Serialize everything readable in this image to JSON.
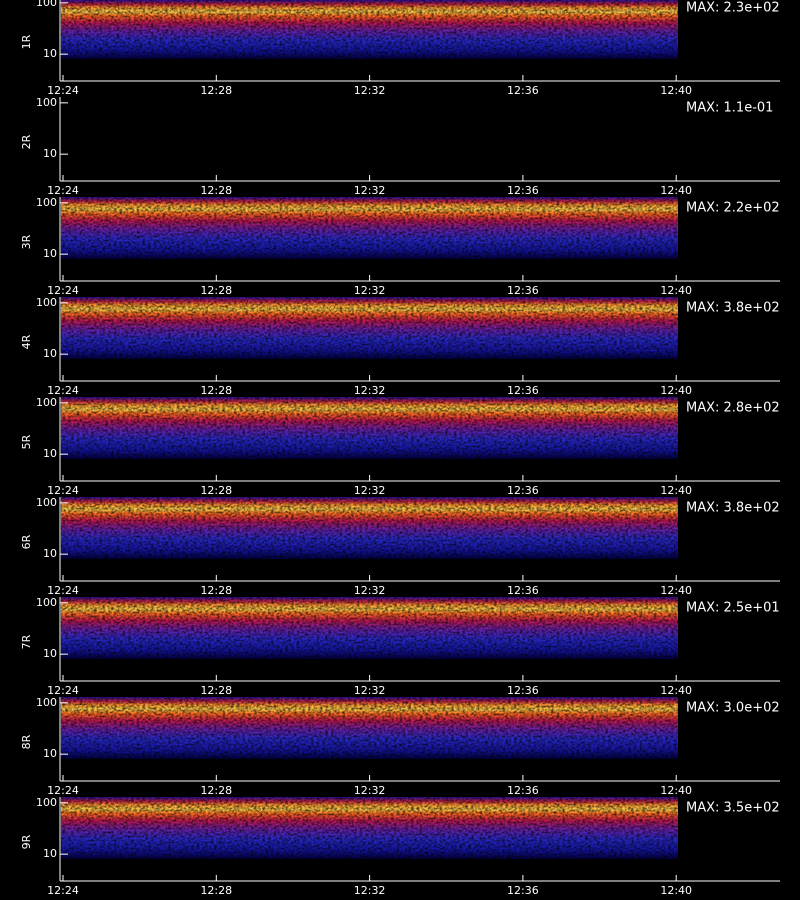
{
  "chart_data": [
    {
      "type": "heatmap",
      "ylabel": "1R",
      "annotation": "MAX: 2.3e+02",
      "log_y": true,
      "ylim": [
        3,
        130
      ],
      "yticks": [
        10,
        100
      ],
      "xticks": [
        "12:24",
        "12:28",
        "12:32",
        "12:36",
        "12:40"
      ]
    },
    {
      "type": "heatmap",
      "ylabel": "2R",
      "annotation": "MAX: 1.1e-01",
      "log_y": true,
      "ylim": [
        3,
        130
      ],
      "yticks": [
        10,
        100
      ],
      "xticks": [
        "12:24",
        "12:28",
        "12:32",
        "12:36",
        "12:40"
      ]
    },
    {
      "type": "heatmap",
      "ylabel": "3R",
      "annotation": "MAX: 2.2e+02",
      "log_y": true,
      "ylim": [
        3,
        130
      ],
      "yticks": [
        10,
        100
      ],
      "xticks": [
        "12:24",
        "12:28",
        "12:32",
        "12:36",
        "12:40"
      ]
    },
    {
      "type": "heatmap",
      "ylabel": "4R",
      "annotation": "MAX: 3.8e+02",
      "log_y": true,
      "ylim": [
        3,
        130
      ],
      "yticks": [
        10,
        100
      ],
      "xticks": [
        "12:24",
        "12:28",
        "12:32",
        "12:36",
        "12:40"
      ]
    },
    {
      "type": "heatmap",
      "ylabel": "5R",
      "annotation": "MAX: 2.8e+02",
      "log_y": true,
      "ylim": [
        3,
        130
      ],
      "yticks": [
        10,
        100
      ],
      "xticks": [
        "12:24",
        "12:28",
        "12:32",
        "12:36",
        "12:40"
      ]
    },
    {
      "type": "heatmap",
      "ylabel": "6R",
      "annotation": "MAX: 3.8e+02",
      "log_y": true,
      "ylim": [
        3,
        130
      ],
      "yticks": [
        10,
        100
      ],
      "xticks": [
        "12:24",
        "12:28",
        "12:32",
        "12:36",
        "12:40"
      ]
    },
    {
      "type": "heatmap",
      "ylabel": "7R",
      "annotation": "MAX: 2.5e+01",
      "log_y": true,
      "ylim": [
        3,
        130
      ],
      "yticks": [
        10,
        100
      ],
      "xticks": [
        "12:24",
        "12:28",
        "12:32",
        "12:36",
        "12:40"
      ]
    },
    {
      "type": "heatmap",
      "ylabel": "8R",
      "annotation": "MAX: 3.0e+02",
      "log_y": true,
      "ylim": [
        3,
        130
      ],
      "yticks": [
        10,
        100
      ],
      "xticks": [
        "12:24",
        "12:28",
        "12:32",
        "12:36",
        "12:40"
      ]
    },
    {
      "type": "heatmap",
      "ylabel": "9R",
      "annotation": "MAX: 3.5e+02",
      "log_y": true,
      "ylim": [
        3,
        130
      ],
      "yticks": [
        10,
        100
      ],
      "xticks": [
        "12:24",
        "12:28",
        "12:32",
        "12:36",
        "12:40"
      ]
    }
  ]
}
